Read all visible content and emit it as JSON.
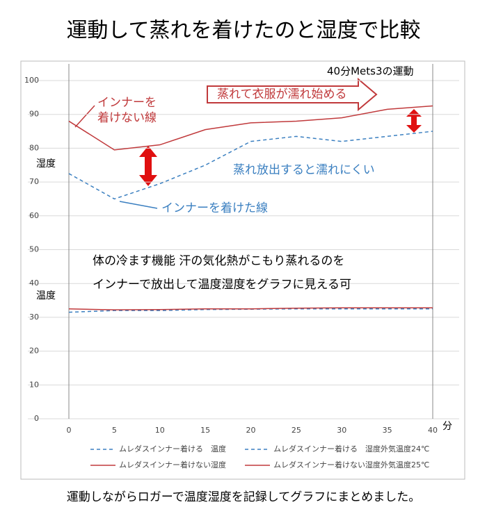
{
  "chart_data": {
    "type": "line",
    "title": "運動して蒸れを着けたのと湿度で比較",
    "footer": "運動しながらロガーで温度湿度を記録してグラフにまとめました。",
    "x_unit": "分",
    "x": [
      0,
      5,
      10,
      15,
      20,
      25,
      30,
      35,
      40
    ],
    "xlim": [
      0,
      40
    ],
    "xticks": [
      0,
      5,
      10,
      15,
      20,
      25,
      30,
      35,
      40
    ],
    "ylim": [
      0,
      100
    ],
    "yticks": [
      0,
      10,
      20,
      30,
      40,
      50,
      60,
      70,
      80,
      90,
      100
    ],
    "grid": true,
    "series": [
      {
        "name": "ムレダスインナー着ける　温度",
        "color": "#3a7fc0",
        "dash": true,
        "values": [
          72.5,
          65,
          69.5,
          75,
          82,
          83.5,
          82,
          83.5,
          85
        ]
      },
      {
        "name": "ムレダスインナー着ける　湿度外気温度24℃",
        "color": "#3a7fc0",
        "dash": true,
        "values": [
          31.5,
          32,
          32,
          32.3,
          32.4,
          32.5,
          32.5,
          32.5,
          32.5
        ]
      },
      {
        "name": "ムレダスインナー着けない湿度",
        "color": "#c0393b",
        "dash": false,
        "values": [
          88,
          79.5,
          81,
          85.5,
          87.5,
          88,
          89,
          91.5,
          92.5
        ]
      },
      {
        "name": "ムレダスインナー着けない湿度外気温度25℃",
        "color": "#c0393b",
        "dash": false,
        "values": [
          32.5,
          32.2,
          32.3,
          32.5,
          32.5,
          32.7,
          32.8,
          32.8,
          32.8
        ]
      }
    ],
    "annotations": [
      "40分Mets3の運動",
      "インナーを",
      "着けない線",
      "蒸れて衣服が濡れ始める",
      "蒸れ放出すると濡れにくい",
      "インナーを着けた線",
      "体の冷ます機能 汗の気化熱がこもり蒸れるのを",
      "インナーで放出して温度湿度をグラフに見える可",
      "湿度",
      "温度"
    ]
  }
}
